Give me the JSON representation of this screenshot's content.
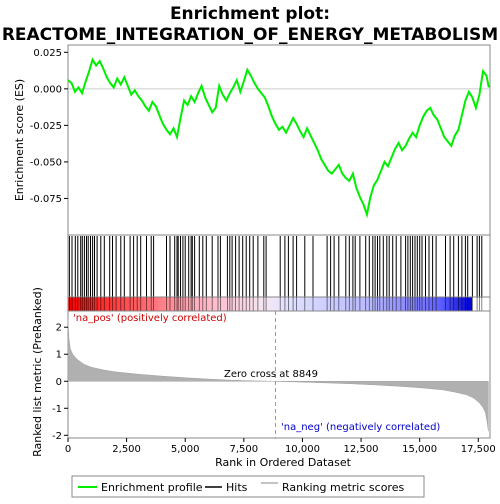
{
  "chart_data": {
    "type": "line",
    "title_line1": "Enrichment plot:",
    "title_line2": "REACTOME_INTEGRATION_OF_ENERGY_METABOLISM",
    "top_ylabel": "Enrichment score (ES)",
    "bottom_ylabel": "Ranked list metric (PreRanked)",
    "xlabel": "Rank in Ordered Dataset",
    "xlim": [
      0,
      18000
    ],
    "x_ticks": [
      0,
      2500,
      5000,
      7500,
      10000,
      12500,
      15000,
      17500
    ],
    "x_tick_labels": [
      "0",
      "2,500",
      "5,000",
      "7,500",
      "10,000",
      "12,500",
      "15,000",
      "17,500"
    ],
    "es_ylim": [
      -0.1,
      0.03
    ],
    "es_ticks": [
      0.025,
      0.0,
      -0.025,
      -0.05,
      -0.075
    ],
    "es_tick_labels": [
      "0.025",
      "0.000",
      "-0.025",
      "-0.050",
      "-0.075"
    ],
    "metric_ylim": [
      -2.1,
      2.6
    ],
    "metric_ticks": [
      2,
      1,
      0,
      -1,
      -2
    ],
    "metric_tick_labels": [
      "2",
      "1",
      "0",
      "-1",
      "-2"
    ],
    "series": [
      {
        "name": "Enrichment profile",
        "color": "#00ee00",
        "x": [
          0,
          150,
          300,
          450,
          600,
          750,
          900,
          1050,
          1200,
          1350,
          1500,
          1650,
          1800,
          1950,
          2100,
          2250,
          2400,
          2550,
          2700,
          2850,
          3000,
          3150,
          3300,
          3450,
          3600,
          3750,
          3900,
          4050,
          4200,
          4350,
          4500,
          4650,
          4800,
          4950,
          5100,
          5250,
          5400,
          5550,
          5700,
          5850,
          6000,
          6150,
          6300,
          6450,
          6600,
          6750,
          6900,
          7050,
          7200,
          7350,
          7500,
          7650,
          7800,
          7950,
          8100,
          8250,
          8400,
          8550,
          8700,
          8850,
          9000,
          9150,
          9300,
          9450,
          9600,
          9750,
          9900,
          10050,
          10200,
          10350,
          10500,
          10650,
          10800,
          10950,
          11100,
          11250,
          11400,
          11550,
          11700,
          11850,
          12000,
          12150,
          12300,
          12450,
          12600,
          12750,
          12900,
          13050,
          13200,
          13350,
          13500,
          13650,
          13800,
          13950,
          14100,
          14250,
          14400,
          14550,
          14700,
          14850,
          15000,
          15150,
          15300,
          15450,
          15600,
          15750,
          15900,
          16050,
          16200,
          16350,
          16500,
          16650,
          16800,
          16950,
          17100,
          17250,
          17400,
          17550,
          17700,
          17850,
          17950
        ],
        "y": [
          0.006,
          0.004,
          -0.002,
          0.001,
          -0.003,
          0.005,
          0.012,
          0.02,
          0.016,
          0.019,
          0.014,
          0.008,
          0.004,
          0.001,
          0.007,
          0.003,
          0.008,
          0.002,
          -0.004,
          -0.001,
          -0.005,
          -0.008,
          -0.012,
          -0.015,
          -0.009,
          -0.012,
          -0.018,
          -0.024,
          -0.028,
          -0.031,
          -0.027,
          -0.033,
          -0.02,
          -0.008,
          -0.011,
          -0.005,
          -0.009,
          -0.003,
          0.002,
          -0.006,
          -0.011,
          -0.016,
          -0.013,
          0.002,
          -0.004,
          -0.008,
          -0.003,
          0.001,
          0.006,
          -0.002,
          0.005,
          0.013,
          0.009,
          0.004,
          0.0,
          -0.003,
          -0.006,
          -0.012,
          -0.019,
          -0.024,
          -0.028,
          -0.026,
          -0.03,
          -0.025,
          -0.02,
          -0.024,
          -0.029,
          -0.033,
          -0.027,
          -0.032,
          -0.037,
          -0.042,
          -0.048,
          -0.052,
          -0.056,
          -0.058,
          -0.055,
          -0.052,
          -0.058,
          -0.061,
          -0.063,
          -0.058,
          -0.068,
          -0.074,
          -0.079,
          -0.086,
          -0.074,
          -0.066,
          -0.062,
          -0.056,
          -0.05,
          -0.053,
          -0.047,
          -0.041,
          -0.037,
          -0.042,
          -0.039,
          -0.034,
          -0.03,
          -0.033,
          -0.025,
          -0.019,
          -0.015,
          -0.013,
          -0.018,
          -0.021,
          -0.027,
          -0.033,
          -0.036,
          -0.039,
          -0.032,
          -0.028,
          -0.018,
          -0.008,
          -0.002,
          -0.006,
          -0.013,
          -0.004,
          0.012,
          0.009,
          0.001
        ]
      },
      {
        "name": "Hits",
        "color": "#000000",
        "x": [
          60,
          170,
          310,
          420,
          540,
          610,
          700,
          790,
          860,
          960,
          1050,
          1130,
          1240,
          1400,
          1550,
          1780,
          1900,
          2050,
          2250,
          2400,
          2650,
          2800,
          2950,
          3100,
          3350,
          3550,
          3650,
          4200,
          4350,
          4550,
          4650,
          4700,
          4800,
          4900,
          5000,
          5150,
          5250,
          5300,
          5400,
          5600,
          5750,
          5900,
          6150,
          6400,
          6500,
          6800,
          6900,
          7000,
          7150,
          7300,
          7450,
          7600,
          7750,
          7900,
          8100,
          8350,
          8450,
          9050,
          9250,
          9400,
          9600,
          9750,
          10100,
          10450,
          11050,
          11200,
          11350,
          11550,
          11850,
          12000,
          12150,
          12250,
          12450,
          12700,
          12850,
          13000,
          13100,
          13200,
          13300,
          13450,
          13600,
          13700,
          13850,
          14000,
          14200,
          14400,
          14500,
          14600,
          14700,
          14800,
          14900,
          15000,
          15100,
          15250,
          15400,
          15550,
          15700,
          16100,
          16300,
          16450,
          16650,
          16800,
          16950,
          17050,
          17250,
          17450,
          17550,
          17650
        ]
      },
      {
        "name": "Ranking metric scores",
        "color": "#b0b0b0",
        "x": [
          0,
          40,
          100,
          200,
          400,
          700,
          1000,
          1500,
          2000,
          3000,
          4000,
          5000,
          6000,
          7000,
          8000,
          8849,
          10000,
          11000,
          12000,
          13000,
          14000,
          15000,
          16000,
          16500,
          17000,
          17300,
          17550,
          17700,
          17800,
          17860,
          17930
        ],
        "y": [
          2.3,
          1.6,
          1.2,
          1.0,
          0.8,
          0.62,
          0.52,
          0.42,
          0.35,
          0.26,
          0.19,
          0.13,
          0.08,
          0.04,
          0.015,
          0.0,
          -0.03,
          -0.06,
          -0.09,
          -0.13,
          -0.18,
          -0.24,
          -0.32,
          -0.4,
          -0.5,
          -0.62,
          -0.8,
          -0.97,
          -1.15,
          -1.4,
          -1.85
        ]
      }
    ],
    "annotations": {
      "pos_label": "'na_pos' (positively correlated)",
      "neg_label": "'na_neg' (negatively correlated)",
      "zero_cross": "Zero cross at 8849",
      "zero_cross_x": 8849
    },
    "legend": {
      "placement": "bottom",
      "items": [
        "Enrichment profile",
        "Hits",
        "Ranking metric scores"
      ]
    },
    "heatmap_colors": {
      "pos": "#ff0000",
      "neg": "#0000ff"
    }
  }
}
